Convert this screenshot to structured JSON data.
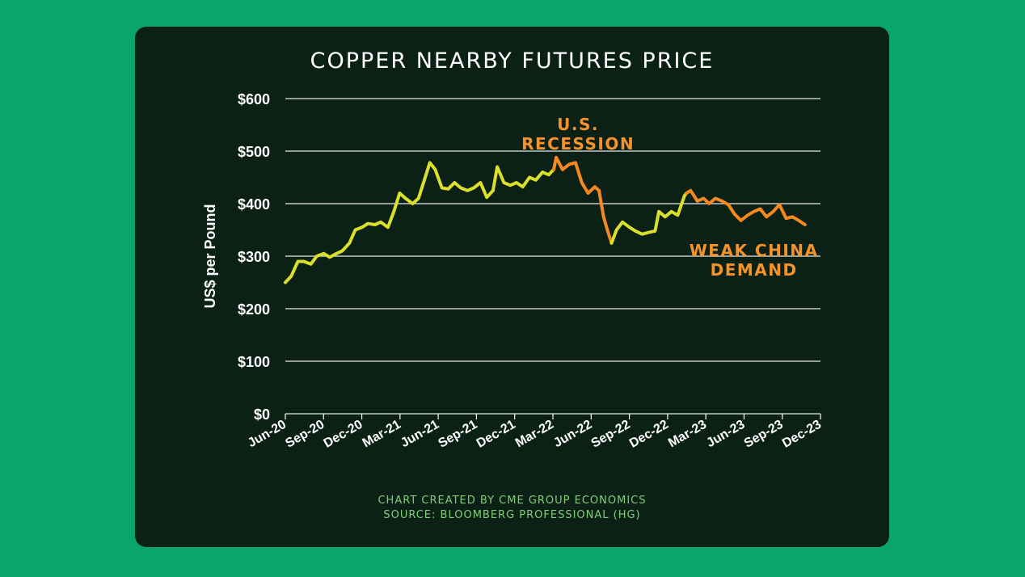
{
  "chart_data": {
    "type": "line",
    "title": "COPPER NEARBY FUTURES PRICE",
    "ylabel": "US$ per Pound",
    "xlabel": "",
    "ylim": [
      0,
      600
    ],
    "yticks": [
      "$0",
      "$100",
      "$200",
      "$300",
      "$400",
      "$500",
      "$600"
    ],
    "xticks": [
      "Jun-20",
      "Sep-20",
      "Dec-20",
      "Mar-21",
      "Jun-21",
      "Sep-21",
      "Dec-21",
      "Mar-22",
      "Jun-22",
      "Sep-22",
      "Dec-22",
      "Mar-23",
      "Jun-23",
      "Sep-23",
      "Dec-23"
    ],
    "grid": true,
    "series": [
      {
        "color": "#d9df2a",
        "x": [
          "2020-06-01",
          "2020-06-15",
          "2020-07-01",
          "2020-07-15",
          "2020-08-01",
          "2020-08-15",
          "2020-09-01",
          "2020-09-15",
          "2020-10-01",
          "2020-10-15",
          "2020-11-01",
          "2020-11-15",
          "2020-12-01",
          "2020-12-15",
          "2021-01-01",
          "2021-01-15",
          "2021-02-01",
          "2021-02-15",
          "2021-03-01",
          "2021-03-15",
          "2021-04-01",
          "2021-04-15",
          "2021-05-01",
          "2021-05-12",
          "2021-05-25",
          "2021-06-10",
          "2021-06-25",
          "2021-07-10",
          "2021-07-25",
          "2021-08-10",
          "2021-08-25",
          "2021-09-10",
          "2021-09-25",
          "2021-10-10",
          "2021-10-20",
          "2021-11-05",
          "2021-11-20",
          "2021-12-05",
          "2021-12-20",
          "2022-01-05",
          "2022-01-20",
          "2022-02-05",
          "2022-02-20",
          "2022-03-04"
        ],
        "y": [
          250,
          262,
          290,
          290,
          285,
          300,
          305,
          298,
          305,
          310,
          325,
          350,
          355,
          362,
          360,
          365,
          355,
          385,
          420,
          410,
          400,
          410,
          450,
          478,
          465,
          430,
          428,
          440,
          430,
          425,
          430,
          440,
          412,
          425,
          470,
          440,
          435,
          440,
          432,
          450,
          445,
          460,
          455,
          465
        ]
      },
      {
        "color": "#f5891f",
        "x": [
          "2022-03-04",
          "2022-03-10",
          "2022-03-25",
          "2022-04-10",
          "2022-04-25",
          "2022-05-10",
          "2022-05-25",
          "2022-06-10",
          "2022-06-20",
          "2022-07-01",
          "2022-07-10",
          "2022-07-20"
        ],
        "y": [
          465,
          488,
          465,
          475,
          478,
          440,
          420,
          432,
          425,
          375,
          350,
          325
        ]
      },
      {
        "color": "#d9df2a",
        "x": [
          "2022-07-20",
          "2022-08-01",
          "2022-08-15",
          "2022-09-01",
          "2022-09-15",
          "2022-10-01",
          "2022-10-15",
          "2022-11-01",
          "2022-11-10",
          "2022-11-25",
          "2022-12-10",
          "2022-12-25",
          "2023-01-10",
          "2023-01-15"
        ],
        "y": [
          325,
          350,
          365,
          355,
          348,
          342,
          345,
          348,
          385,
          375,
          385,
          378,
          415,
          420
        ]
      },
      {
        "color": "#f5891f",
        "x": [
          "2023-01-15",
          "2023-01-25",
          "2023-02-10",
          "2023-02-25",
          "2023-03-10",
          "2023-03-25",
          "2023-04-10",
          "2023-04-25",
          "2023-05-10",
          "2023-05-25",
          "2023-06-10",
          "2023-06-25",
          "2023-07-10",
          "2023-07-25",
          "2023-08-10",
          "2023-08-25",
          "2023-09-10",
          "2023-09-25",
          "2023-10-10",
          "2023-10-25"
        ],
        "y": [
          420,
          425,
          405,
          410,
          400,
          410,
          405,
          398,
          380,
          368,
          378,
          385,
          390,
          375,
          385,
          398,
          372,
          375,
          368,
          360
        ]
      }
    ],
    "annotations": [
      {
        "lines": [
          "U.S.",
          "RECESSION"
        ],
        "color": "#f5922a",
        "at_x": "2022-05-01",
        "at_y": 540
      },
      {
        "lines": [
          "WEAK CHINA",
          "DEMAND"
        ],
        "color": "#f5922a",
        "at_x": "2023-06-25",
        "at_y": 300
      }
    ]
  },
  "credits": [
    "CHART CREATED BY CME GROUP ECONOMICS",
    "SOURCE: BLOOMBERG PROFESSIONAL (HG)"
  ]
}
